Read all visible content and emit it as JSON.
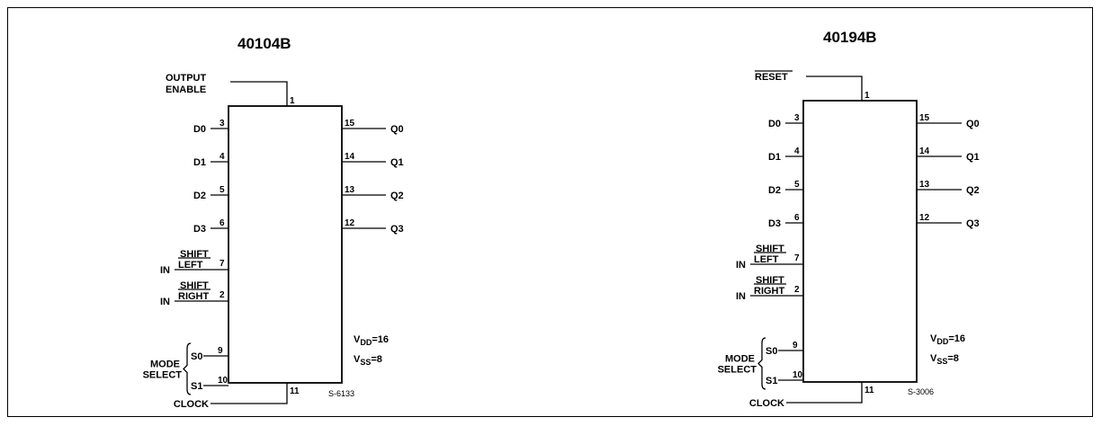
{
  "diagrams": [
    {
      "title": "40104B",
      "code": "S-6133",
      "vdd": "16",
      "vss": "8",
      "top_pin": {
        "num": "1",
        "label_lines": [
          "OUTPUT",
          "ENABLE"
        ],
        "overline": false
      },
      "bottom_pin": {
        "num": "11",
        "label": "CLOCK"
      },
      "left_pins": [
        {
          "num": "3",
          "label": "D0"
        },
        {
          "num": "4",
          "label": "D1"
        },
        {
          "num": "5",
          "label": "D2"
        },
        {
          "num": "6",
          "label": "D3"
        }
      ],
      "right_pins": [
        {
          "num": "15",
          "label": "Q0"
        },
        {
          "num": "14",
          "label": "Q1"
        },
        {
          "num": "13",
          "label": "Q2"
        },
        {
          "num": "12",
          "label": "Q3"
        }
      ],
      "serial_pins": [
        {
          "num": "7",
          "top": "SHIFT",
          "bottom": "LEFT",
          "prefix": "IN"
        },
        {
          "num": "2",
          "top": "SHIFT",
          "bottom": "RIGHT",
          "prefix": "IN"
        }
      ],
      "mode_pins": [
        {
          "num": "9",
          "label": "S0"
        },
        {
          "num": "10",
          "label": "S1"
        }
      ],
      "mode_label": [
        "MODE",
        "SELECT"
      ]
    },
    {
      "title": "40194B",
      "code": "S-3006",
      "vdd": "16",
      "vss": "8",
      "top_pin": {
        "num": "1",
        "label_lines": [
          "RESET"
        ],
        "overline": true
      },
      "bottom_pin": {
        "num": "11",
        "label": "CLOCK"
      },
      "left_pins": [
        {
          "num": "3",
          "label": "D0"
        },
        {
          "num": "4",
          "label": "D1"
        },
        {
          "num": "5",
          "label": "D2"
        },
        {
          "num": "6",
          "label": "D3"
        }
      ],
      "right_pins": [
        {
          "num": "15",
          "label": "Q0"
        },
        {
          "num": "14",
          "label": "Q1"
        },
        {
          "num": "13",
          "label": "Q2"
        },
        {
          "num": "12",
          "label": "Q3"
        }
      ],
      "serial_pins": [
        {
          "num": "7",
          "top": "SHIFT",
          "bottom": "LEFT",
          "prefix": "IN"
        },
        {
          "num": "2",
          "top": "SHIFT",
          "bottom": "RIGHT",
          "prefix": "IN"
        }
      ],
      "mode_pins": [
        {
          "num": "9",
          "label": "S0"
        },
        {
          "num": "10",
          "label": "S1"
        }
      ],
      "mode_label": [
        "MODE",
        "SELECT"
      ]
    }
  ]
}
